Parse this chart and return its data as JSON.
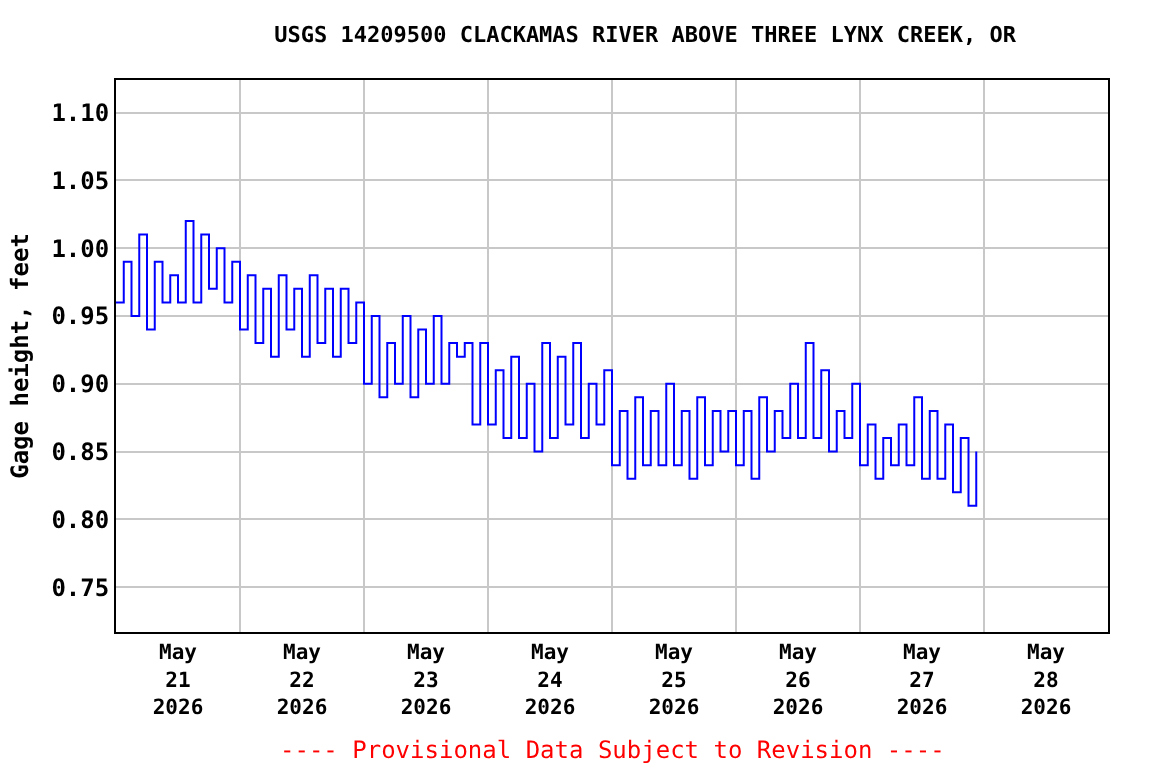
{
  "chart_data": {
    "type": "step",
    "title": "USGS 14209500 CLACKAMAS RIVER ABOVE THREE LYNX CREEK, OR",
    "ylabel": "Gage height, feet",
    "annotations": [
      "---- Provisional Data Subject to Revision ----"
    ],
    "x": [
      "2026-05-21T00:00",
      "2026-05-21T01:30",
      "2026-05-21T03:00",
      "2026-05-21T04:30",
      "2026-05-21T06:00",
      "2026-05-21T07:30",
      "2026-05-21T09:00",
      "2026-05-21T10:30",
      "2026-05-21T12:00",
      "2026-05-21T13:30",
      "2026-05-21T15:00",
      "2026-05-21T16:30",
      "2026-05-21T18:00",
      "2026-05-21T19:30",
      "2026-05-21T21:00",
      "2026-05-21T22:30",
      "2026-05-22T00:00",
      "2026-05-22T01:30",
      "2026-05-22T03:00",
      "2026-05-22T04:30",
      "2026-05-22T06:00",
      "2026-05-22T07:30",
      "2026-05-22T09:00",
      "2026-05-22T10:30",
      "2026-05-22T12:00",
      "2026-05-22T13:30",
      "2026-05-22T15:00",
      "2026-05-22T16:30",
      "2026-05-22T18:00",
      "2026-05-22T19:30",
      "2026-05-22T21:00",
      "2026-05-22T22:30",
      "2026-05-23T00:00",
      "2026-05-23T01:30",
      "2026-05-23T03:00",
      "2026-05-23T04:30",
      "2026-05-23T06:00",
      "2026-05-23T07:30",
      "2026-05-23T09:00",
      "2026-05-23T10:30",
      "2026-05-23T12:00",
      "2026-05-23T13:30",
      "2026-05-23T15:00",
      "2026-05-23T16:30",
      "2026-05-23T18:00",
      "2026-05-23T19:30",
      "2026-05-23T21:00",
      "2026-05-23T22:30",
      "2026-05-24T00:00",
      "2026-05-24T01:30",
      "2026-05-24T03:00",
      "2026-05-24T04:30",
      "2026-05-24T06:00",
      "2026-05-24T07:30",
      "2026-05-24T09:00",
      "2026-05-24T10:30",
      "2026-05-24T12:00",
      "2026-05-24T13:30",
      "2026-05-24T15:00",
      "2026-05-24T16:30",
      "2026-05-24T18:00",
      "2026-05-24T19:30",
      "2026-05-24T21:00",
      "2026-05-24T22:30",
      "2026-05-25T00:00",
      "2026-05-25T01:30",
      "2026-05-25T03:00",
      "2026-05-25T04:30",
      "2026-05-25T06:00",
      "2026-05-25T07:30",
      "2026-05-25T09:00",
      "2026-05-25T10:30",
      "2026-05-25T12:00",
      "2026-05-25T13:30",
      "2026-05-25T15:00",
      "2026-05-25T16:30",
      "2026-05-25T18:00",
      "2026-05-25T19:30",
      "2026-05-25T21:00",
      "2026-05-25T22:30",
      "2026-05-26T00:00",
      "2026-05-26T01:30",
      "2026-05-26T03:00",
      "2026-05-26T04:30",
      "2026-05-26T06:00",
      "2026-05-26T07:30",
      "2026-05-26T09:00",
      "2026-05-26T10:30",
      "2026-05-26T12:00",
      "2026-05-26T13:30",
      "2026-05-26T15:00",
      "2026-05-26T16:30",
      "2026-05-26T18:00",
      "2026-05-26T19:30",
      "2026-05-26T21:00",
      "2026-05-26T22:30",
      "2026-05-27T00:00",
      "2026-05-27T01:30",
      "2026-05-27T03:00",
      "2026-05-27T04:30",
      "2026-05-27T06:00",
      "2026-05-27T07:30",
      "2026-05-27T09:00",
      "2026-05-27T10:30",
      "2026-05-27T12:00",
      "2026-05-27T13:30",
      "2026-05-27T15:00",
      "2026-05-27T16:30",
      "2026-05-27T18:00",
      "2026-05-27T19:30",
      "2026-05-27T21:00",
      "2026-05-27T22:30"
    ],
    "series": [
      {
        "color": "#0000ff",
        "values": [
          0.96,
          0.99,
          0.95,
          1.01,
          0.94,
          0.99,
          0.96,
          0.98,
          0.96,
          1.02,
          0.96,
          1.01,
          0.97,
          1.0,
          0.96,
          0.99,
          0.94,
          0.98,
          0.93,
          0.97,
          0.92,
          0.98,
          0.94,
          0.97,
          0.92,
          0.98,
          0.93,
          0.97,
          0.92,
          0.97,
          0.93,
          0.96,
          0.9,
          0.95,
          0.89,
          0.93,
          0.9,
          0.95,
          0.89,
          0.94,
          0.9,
          0.95,
          0.9,
          0.93,
          0.92,
          0.93,
          0.87,
          0.93,
          0.87,
          0.91,
          0.86,
          0.92,
          0.86,
          0.9,
          0.85,
          0.93,
          0.86,
          0.92,
          0.87,
          0.93,
          0.86,
          0.9,
          0.87,
          0.91,
          0.84,
          0.88,
          0.83,
          0.89,
          0.84,
          0.88,
          0.84,
          0.9,
          0.84,
          0.88,
          0.83,
          0.89,
          0.84,
          0.88,
          0.85,
          0.88,
          0.84,
          0.88,
          0.83,
          0.89,
          0.85,
          0.88,
          0.86,
          0.9,
          0.86,
          0.93,
          0.86,
          0.91,
          0.85,
          0.88,
          0.86,
          0.9,
          0.84,
          0.87,
          0.83,
          0.86,
          0.84,
          0.87,
          0.84,
          0.89,
          0.83,
          0.88,
          0.83,
          0.87,
          0.82,
          0.86,
          0.81,
          0.85
        ]
      }
    ],
    "xlim": [
      "2026-05-21",
      "2026-05-29"
    ],
    "xticks": [
      {
        "value": "2026-05-21T12:00",
        "label": "May\n21\n2026"
      },
      {
        "value": "2026-05-22",
        "label": null
      },
      {
        "value": "2026-05-22T12:00",
        "label": "May\n22\n2026"
      },
      {
        "value": "2026-05-23",
        "label": null
      },
      {
        "value": "2026-05-23T12:00",
        "label": "May\n23\n2026"
      },
      {
        "value": "2026-05-24",
        "label": null
      },
      {
        "value": "2026-05-24T12:00",
        "label": "May\n24\n2026"
      },
      {
        "value": "2026-05-25",
        "label": null
      },
      {
        "value": "2026-05-25T12:00",
        "label": "May\n25\n2026"
      },
      {
        "value": "2026-05-26",
        "label": null
      },
      {
        "value": "2026-05-26T12:00",
        "label": "May\n26\n2026"
      },
      {
        "value": "2026-05-27",
        "label": null
      },
      {
        "value": "2026-05-27T12:00",
        "label": "May\n27\n2026"
      },
      {
        "value": "2026-05-28",
        "label": null
      },
      {
        "value": "2026-05-28T12:00",
        "label": "May\n28\n2026"
      }
    ],
    "ylim": [
      0.717,
      1.124
    ],
    "yticks": [
      {
        "value": 0.75,
        "label": "0.75"
      },
      {
        "value": 0.8,
        "label": "0.80"
      },
      {
        "value": 0.85,
        "label": "0.85"
      },
      {
        "value": 0.9,
        "label": "0.90"
      },
      {
        "value": 0.95,
        "label": "0.95"
      },
      {
        "value": 1.0,
        "label": "1.00"
      },
      {
        "value": 1.05,
        "label": "1.05"
      },
      {
        "value": 1.1,
        "label": "1.10"
      }
    ],
    "grid": true,
    "line_style": "solid",
    "marker": "none"
  }
}
